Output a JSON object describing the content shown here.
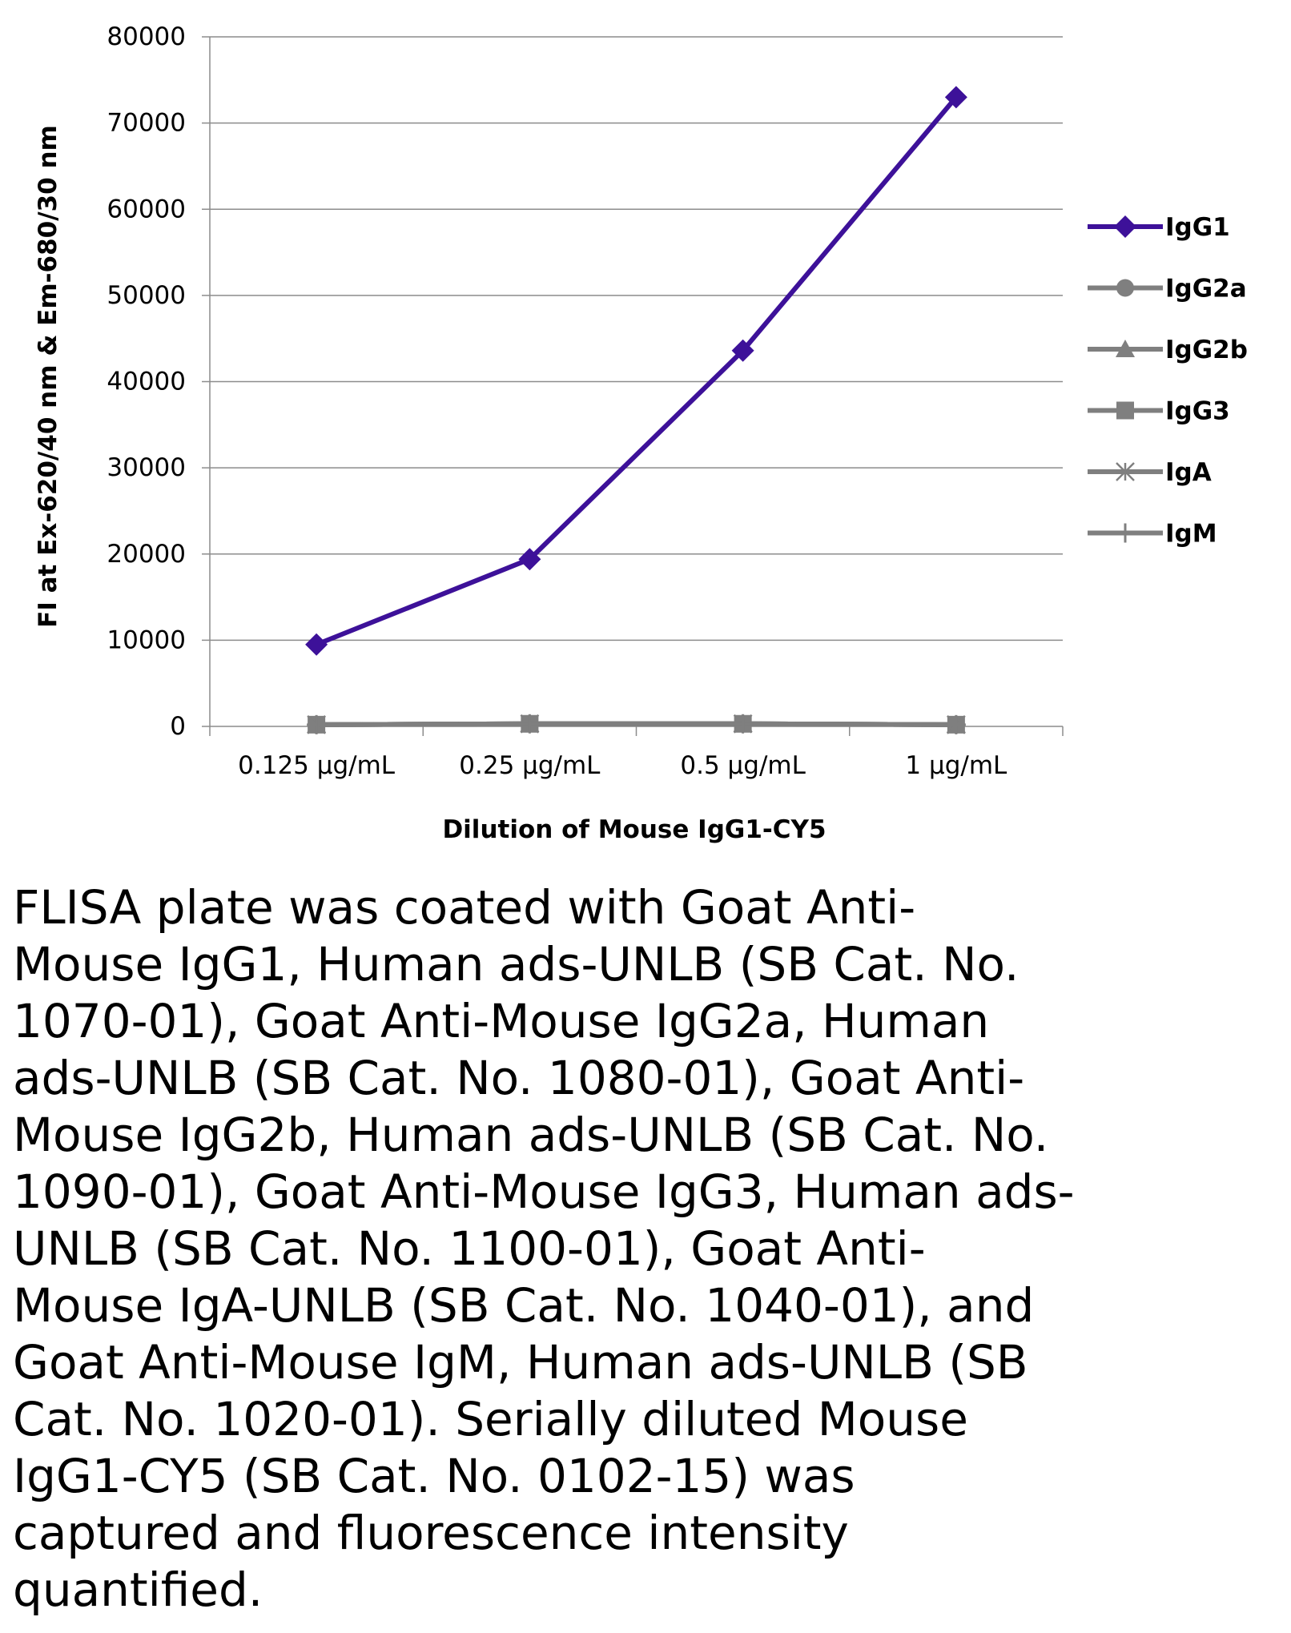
{
  "chart_data": {
    "type": "line",
    "title": "",
    "xlabel": "Dilution of Mouse IgG1-CY5",
    "ylabel": "FI at Ex-620/40 nm & Em-680/30 nm",
    "categories": [
      "0.125 µg/mL",
      "0.25 µg/mL",
      "0.5 µg/mL",
      "1 µg/mL"
    ],
    "y_ticks": [
      "80000",
      "70000",
      "60000",
      "50000",
      "40000",
      "30000",
      "20000",
      "10000",
      "0"
    ],
    "ylim": [
      0,
      80000
    ],
    "grid": "horizontal",
    "legend_position": "right",
    "series": [
      {
        "name": "IgG1",
        "values": [
          9500,
          19400,
          43600,
          73000
        ],
        "color": "#3d1199",
        "marker": "diamond"
      },
      {
        "name": "IgG2a",
        "values": [
          200,
          300,
          300,
          200
        ],
        "color": "#7f7f7f",
        "marker": "circle"
      },
      {
        "name": "IgG2b",
        "values": [
          200,
          300,
          300,
          200
        ],
        "color": "#7f7f7f",
        "marker": "triangle"
      },
      {
        "name": "IgG3",
        "values": [
          200,
          300,
          300,
          200
        ],
        "color": "#7f7f7f",
        "marker": "square"
      },
      {
        "name": "IgA",
        "values": [
          200,
          300,
          300,
          200
        ],
        "color": "#7f7f7f",
        "marker": "star"
      },
      {
        "name": "IgM",
        "values": [
          200,
          300,
          300,
          200
        ],
        "color": "#7f7f7f",
        "marker": "plus"
      }
    ]
  },
  "caption": "FLISA plate was coated with Goat Anti-\nMouse IgG1, Human ads-UNLB (SB Cat. No.\n1070-01), Goat Anti-Mouse IgG2a, Human\nads-UNLB (SB Cat. No. 1080-01), Goat Anti-\nMouse IgG2b, Human ads-UNLB (SB Cat. No.\n1090-01), Goat Anti-Mouse IgG3, Human ads-\nUNLB (SB Cat. No. 1100-01), Goat Anti-\nMouse IgA-UNLB (SB Cat. No. 1040-01), and\nGoat Anti-Mouse IgM, Human ads-UNLB (SB\nCat. No. 1020-01).  Serially diluted Mouse\nIgG1-CY5 (SB Cat. No. 0102-15) was\ncaptured and fluorescence intensity\nquantified."
}
